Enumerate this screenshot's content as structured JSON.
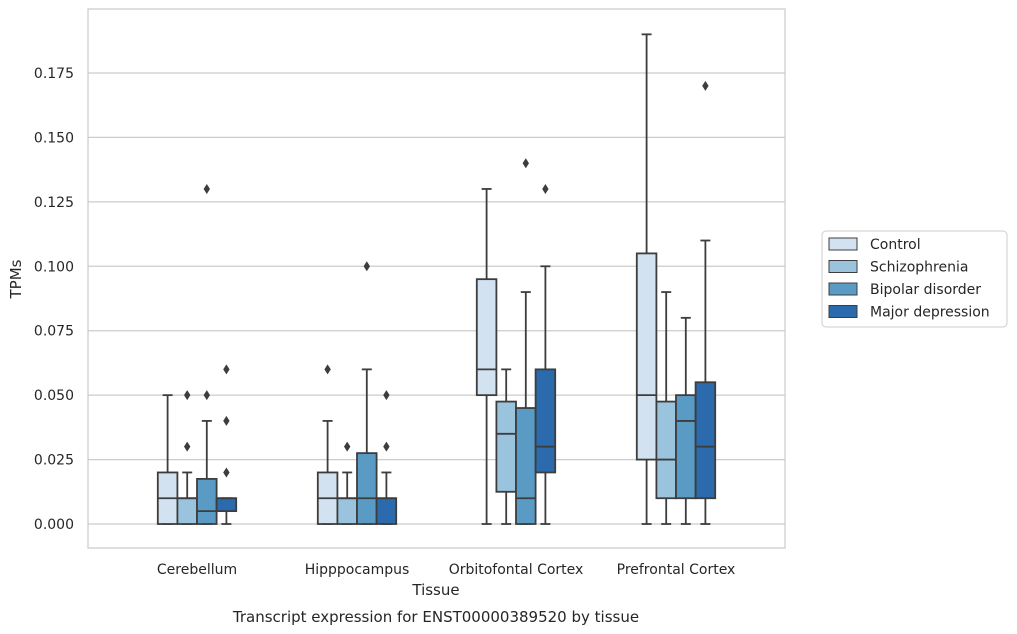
{
  "chart_data": {
    "type": "box",
    "title": "Transcript expression for ENST00000389520 by tissue",
    "xlabel": "Tissue",
    "ylabel": "TPMs",
    "ylim": [
      -0.009,
      0.198
    ],
    "yticks": [
      "0.000",
      "0.025",
      "0.050",
      "0.075",
      "0.100",
      "0.125",
      "0.150",
      "0.175"
    ],
    "ytick_values": [
      0,
      0.025,
      0.05,
      0.075,
      0.1,
      0.125,
      0.15,
      0.175
    ],
    "grid": true,
    "legend_position": "right",
    "categories": [
      "Cerebellum",
      "Hipppocampus",
      "Orbitofontal Cortex",
      "Prefrontal Cortex"
    ],
    "series": [
      {
        "name": "Control",
        "color": "#d3e2f1",
        "boxes": [
          {
            "whislo": 0,
            "q1": 0,
            "med": 0.01,
            "q3": 0.02,
            "whishi": 0.05,
            "fliers": []
          },
          {
            "whislo": 0,
            "q1": 0,
            "med": 0.01,
            "q3": 0.02,
            "whishi": 0.04,
            "fliers": [
              0.06
            ]
          },
          {
            "whislo": 0,
            "q1": 0.05,
            "med": 0.06,
            "q3": 0.095,
            "whishi": 0.13,
            "fliers": []
          },
          {
            "whislo": 0,
            "q1": 0.025,
            "med": 0.05,
            "q3": 0.105,
            "whishi": 0.19,
            "fliers": []
          }
        ]
      },
      {
        "name": "Schizophrenia",
        "color": "#9ac4dd",
        "boxes": [
          {
            "whislo": 0,
            "q1": 0,
            "med": 0.01,
            "q3": 0.01,
            "whishi": 0.02,
            "fliers": [
              0.03,
              0.05
            ]
          },
          {
            "whislo": 0,
            "q1": 0,
            "med": 0.01,
            "q3": 0.01,
            "whishi": 0.02,
            "fliers": [
              0.03
            ]
          },
          {
            "whislo": 0,
            "q1": 0.0125,
            "med": 0.035,
            "q3": 0.0475,
            "whishi": 0.06,
            "fliers": []
          },
          {
            "whislo": 0,
            "q1": 0.01,
            "med": 0.025,
            "q3": 0.0475,
            "whishi": 0.09,
            "fliers": []
          }
        ]
      },
      {
        "name": "Bipolar disorder",
        "color": "#5a9bc6",
        "boxes": [
          {
            "whislo": 0,
            "q1": 0,
            "med": 0.005,
            "q3": 0.0175,
            "whishi": 0.04,
            "fliers": [
              0.05,
              0.13
            ]
          },
          {
            "whislo": 0,
            "q1": 0,
            "med": 0.01,
            "q3": 0.0275,
            "whishi": 0.06,
            "fliers": [
              0.1
            ]
          },
          {
            "whislo": 0,
            "q1": 0,
            "med": 0.01,
            "q3": 0.045,
            "whishi": 0.09,
            "fliers": [
              0.14
            ]
          },
          {
            "whislo": 0,
            "q1": 0.01,
            "med": 0.04,
            "q3": 0.05,
            "whishi": 0.08,
            "fliers": []
          }
        ]
      },
      {
        "name": "Major depression",
        "color": "#2b6aad",
        "boxes": [
          {
            "whislo": 0,
            "q1": 0.005,
            "med": 0.01,
            "q3": 0.01,
            "whishi": 0.01,
            "fliers": [
              0.02,
              0.04,
              0.06
            ]
          },
          {
            "whislo": 0,
            "q1": 0,
            "med": 0.01,
            "q3": 0.01,
            "whishi": 0.02,
            "fliers": [
              0.03,
              0.05
            ]
          },
          {
            "whislo": 0,
            "q1": 0.02,
            "med": 0.03,
            "q3": 0.06,
            "whishi": 0.1,
            "fliers": [
              0.13
            ]
          },
          {
            "whislo": 0,
            "q1": 0.01,
            "med": 0.03,
            "q3": 0.055,
            "whishi": 0.11,
            "fliers": [
              0.17
            ]
          }
        ]
      }
    ]
  }
}
